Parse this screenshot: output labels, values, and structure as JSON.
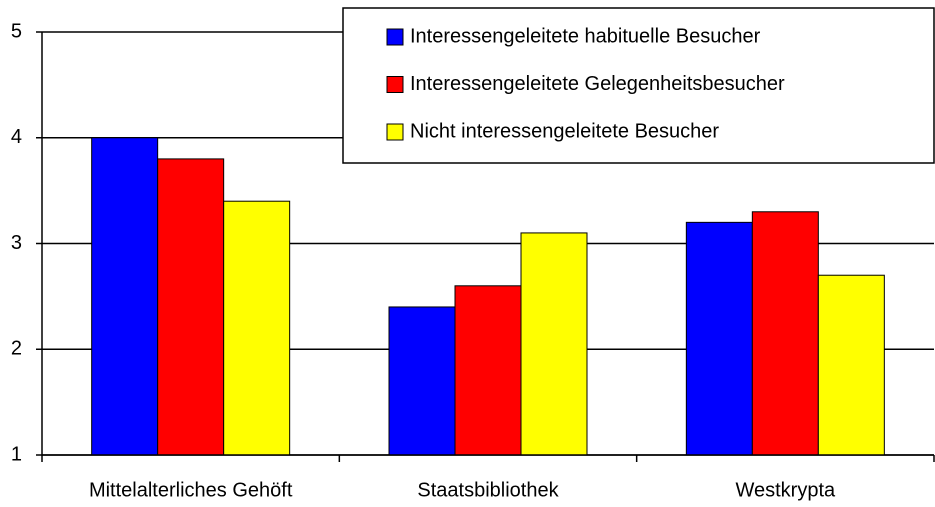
{
  "chart_data": {
    "type": "bar",
    "categories": [
      "Mittelalterliches Gehöft",
      "Staatsbibliothek",
      "Westkrypta"
    ],
    "series": [
      {
        "name": "Interessengeleitete habituelle Besucher",
        "color": "#0000ff",
        "values": [
          4.0,
          2.4,
          3.2
        ]
      },
      {
        "name": "Interessengeleitete Gelegenheitsbesucher",
        "color": "#ff0000",
        "values": [
          3.8,
          2.6,
          3.3
        ]
      },
      {
        "name": "Nicht interessengeleitete Besucher",
        "color": "#ffff00",
        "values": [
          3.4,
          3.1,
          2.7
        ]
      }
    ],
    "ylim": [
      1,
      5
    ],
    "yticks": [
      1,
      2,
      3,
      4,
      5
    ],
    "grid": true,
    "legend": "top-right"
  }
}
